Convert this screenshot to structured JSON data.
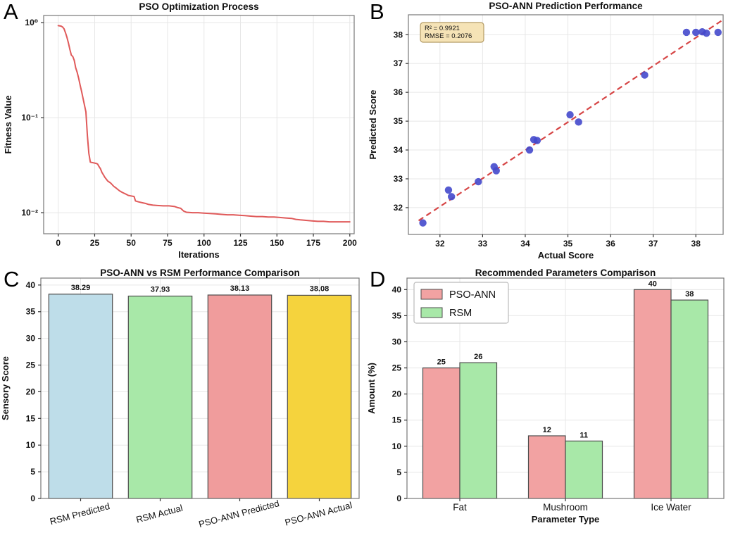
{
  "figure": {
    "background": "#ffffff",
    "panels": {
      "a": {
        "letter": "A"
      },
      "b": {
        "letter": "B"
      },
      "c": {
        "letter": "C"
      },
      "d": {
        "letter": "D"
      }
    }
  },
  "style": {
    "spine_color": "#777777",
    "grid_color": "#e7e7e7",
    "tick_color": "#333333",
    "text_color": "#111111",
    "bar_edge_color": "#4d4d4d"
  },
  "chart_data": [
    {
      "panel": "A",
      "type": "line",
      "title": "PSO Optimization Process",
      "xlabel": "Iterations",
      "ylabel": "Fitness Value",
      "xlim": [
        -10,
        203
      ],
      "xticks": [
        0,
        25,
        50,
        75,
        100,
        125,
        150,
        175,
        200
      ],
      "yscale": "log",
      "ylim": [
        0.006,
        1.19
      ],
      "yticks": [
        1,
        0.1,
        0.01
      ],
      "ytick_labels": [
        "10⁰",
        "10⁻¹",
        "10⁻²"
      ],
      "grid": true,
      "line_color": "#e05a5a",
      "points": [
        [
          0,
          0.93
        ],
        [
          2,
          0.92
        ],
        [
          3,
          0.9
        ],
        [
          4,
          0.86
        ],
        [
          5,
          0.78
        ],
        [
          6,
          0.7
        ],
        [
          7,
          0.61
        ],
        [
          8,
          0.52
        ],
        [
          9,
          0.455
        ],
        [
          10,
          0.44
        ],
        [
          11,
          0.4
        ],
        [
          12,
          0.335
        ],
        [
          13,
          0.3
        ],
        [
          14,
          0.26
        ],
        [
          15,
          0.22
        ],
        [
          16,
          0.19
        ],
        [
          17,
          0.16
        ],
        [
          18,
          0.135
        ],
        [
          19,
          0.115
        ],
        [
          20,
          0.065
        ],
        [
          21,
          0.042
        ],
        [
          22,
          0.034
        ],
        [
          24,
          0.0335
        ],
        [
          26,
          0.033
        ],
        [
          27,
          0.0325
        ],
        [
          28,
          0.0305
        ],
        [
          29,
          0.029
        ],
        [
          30,
          0.0265
        ],
        [
          31,
          0.025
        ],
        [
          32,
          0.0235
        ],
        [
          33,
          0.0225
        ],
        [
          34,
          0.0215
        ],
        [
          36,
          0.0205
        ],
        [
          38,
          0.019
        ],
        [
          40,
          0.018
        ],
        [
          42,
          0.017
        ],
        [
          44,
          0.0163
        ],
        [
          46,
          0.0158
        ],
        [
          48,
          0.0152
        ],
        [
          50,
          0.015
        ],
        [
          52,
          0.0148
        ],
        [
          53,
          0.0133
        ],
        [
          55,
          0.013
        ],
        [
          58,
          0.0127
        ],
        [
          60,
          0.0125
        ],
        [
          62,
          0.0122
        ],
        [
          65,
          0.012
        ],
        [
          68,
          0.0119
        ],
        [
          72,
          0.0118
        ],
        [
          76,
          0.0118
        ],
        [
          80,
          0.0116
        ],
        [
          82,
          0.0113
        ],
        [
          84,
          0.0111
        ],
        [
          86,
          0.0104
        ],
        [
          88,
          0.0101
        ],
        [
          92,
          0.01
        ],
        [
          96,
          0.01
        ],
        [
          100,
          0.0099
        ],
        [
          104,
          0.0098
        ],
        [
          108,
          0.0097
        ],
        [
          112,
          0.0096
        ],
        [
          116,
          0.0095
        ],
        [
          120,
          0.0095
        ],
        [
          124,
          0.0094
        ],
        [
          128,
          0.0093
        ],
        [
          132,
          0.0092
        ],
        [
          136,
          0.0091
        ],
        [
          140,
          0.0091
        ],
        [
          144,
          0.009
        ],
        [
          148,
          0.009
        ],
        [
          152,
          0.0089
        ],
        [
          156,
          0.0088
        ],
        [
          160,
          0.0087
        ],
        [
          163,
          0.0085
        ],
        [
          166,
          0.0084
        ],
        [
          170,
          0.0083
        ],
        [
          174,
          0.0082
        ],
        [
          178,
          0.0081
        ],
        [
          182,
          0.0081
        ],
        [
          186,
          0.008
        ],
        [
          200,
          0.008
        ]
      ]
    },
    {
      "panel": "B",
      "type": "scatter",
      "title": "PSO-ANN Prediction Performance",
      "xlabel": "Actual Score",
      "ylabel": "Predicted Score",
      "xlim": [
        31.26,
        38.64
      ],
      "ylim": [
        31.07,
        38.69
      ],
      "xticks": [
        32,
        33,
        34,
        35,
        36,
        37,
        38
      ],
      "yticks": [
        32,
        33,
        34,
        35,
        36,
        37,
        38
      ],
      "grid": true,
      "point_color": "#4449cc",
      "points": [
        [
          31.6,
          31.47
        ],
        [
          32.2,
          32.61
        ],
        [
          32.27,
          32.38
        ],
        [
          32.9,
          32.9
        ],
        [
          33.27,
          33.42
        ],
        [
          33.32,
          33.28
        ],
        [
          34.1,
          34.0
        ],
        [
          34.2,
          34.36
        ],
        [
          34.28,
          34.33
        ],
        [
          35.05,
          35.22
        ],
        [
          35.25,
          34.97
        ],
        [
          36.8,
          36.6
        ],
        [
          37.78,
          38.08
        ],
        [
          38.0,
          38.08
        ],
        [
          38.15,
          38.1
        ],
        [
          38.25,
          38.05
        ],
        [
          38.52,
          38.08
        ]
      ],
      "fit_line": {
        "color": "#d64545",
        "x": [
          31.5,
          38.6
        ],
        "y": [
          31.55,
          38.48
        ],
        "dashed": true
      },
      "annotation": {
        "line1": "R² = 0.9921",
        "line2": "RMSE = 0.2076",
        "bg": "#f5e3b6",
        "border": "#b49b64"
      }
    },
    {
      "panel": "C",
      "type": "bar",
      "title": "PSO-ANN vs RSM Performance Comparison",
      "xlabel": "",
      "ylabel": "Sensory Score",
      "categories": [
        "RSM Predicted",
        "RSM Actual",
        "PSO-ANN Predicted",
        "PSO-ANN Actual"
      ],
      "values": [
        38.29,
        37.93,
        38.13,
        38.08
      ],
      "value_labels": [
        "38.29",
        "37.93",
        "38.13",
        "38.08"
      ],
      "bar_colors": [
        "#bedde9",
        "#a8e8a8",
        "#f09c9c",
        "#f5d33d"
      ],
      "ylim": [
        0,
        41.3
      ],
      "yticks": [
        0,
        5,
        10,
        15,
        20,
        25,
        30,
        35,
        40
      ],
      "category_rotation": 15,
      "grid": true
    },
    {
      "panel": "D",
      "type": "grouped_bar",
      "title": "Recommended Parameters Comparison",
      "xlabel": "Parameter Type",
      "ylabel": "Amount (%)",
      "categories": [
        "Fat",
        "Mushroom",
        "Ice Water"
      ],
      "series": [
        {
          "name": "PSO-ANN",
          "color": "#f2a2a2",
          "values": [
            25,
            12,
            40
          ]
        },
        {
          "name": "RSM",
          "color": "#a8e8a8",
          "values": [
            26,
            11,
            38
          ]
        }
      ],
      "ylim": [
        0,
        42.2
      ],
      "yticks": [
        0,
        5,
        10,
        15,
        20,
        25,
        30,
        35,
        40
      ],
      "legend_position": "upper-left",
      "grid": true
    }
  ]
}
